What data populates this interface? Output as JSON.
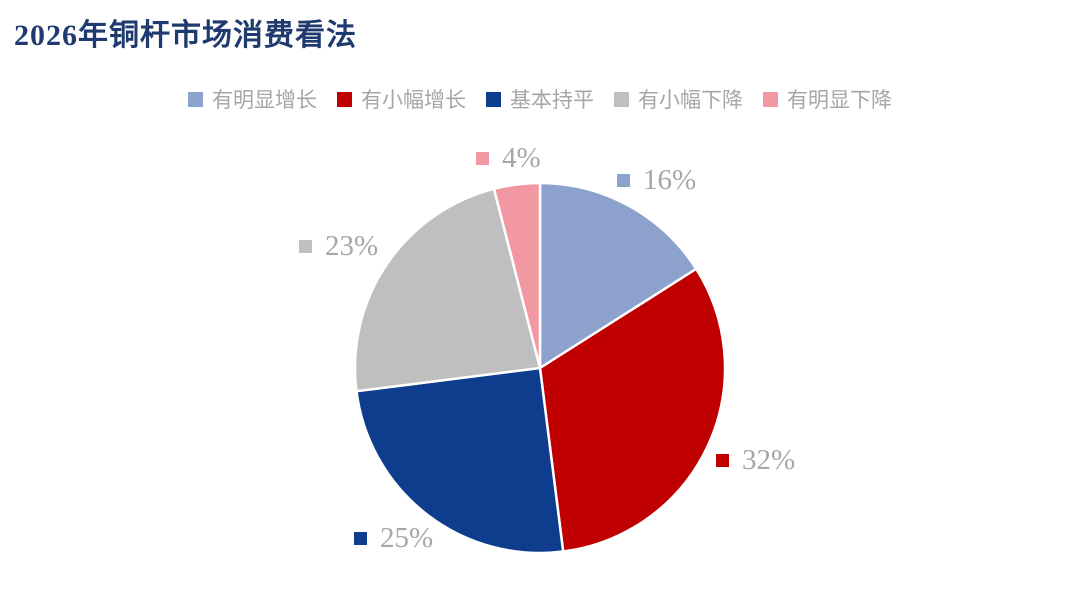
{
  "title": "2026年铜杆市场消费看法",
  "colors": {
    "title_text": "#1E3A6E",
    "label_text": "#A6A6A6",
    "slice_divider": "#FFFFFF",
    "background": "#FFFFFF"
  },
  "chart_data": {
    "type": "pie",
    "title": "2026年铜杆市场消费看法",
    "legend_position": "top",
    "start_angle_deg": 0,
    "direction": "clockwise",
    "unit": "percent",
    "categories": [
      "有明显增长",
      "有小幅增长",
      "基本持平",
      "有小幅下降",
      "有明显下降"
    ],
    "values": [
      16,
      32,
      25,
      23,
      4
    ],
    "slices": [
      {
        "label": "有明显增长",
        "value": 16,
        "data_label": "16%",
        "color": "#8CA2CC"
      },
      {
        "label": "有小幅增长",
        "value": 32,
        "data_label": "32%",
        "color": "#C00000"
      },
      {
        "label": "基本持平",
        "value": 25,
        "data_label": "25%",
        "color": "#0D3D8C"
      },
      {
        "label": "有小幅下降",
        "value": 23,
        "data_label": "23%",
        "color": "#BFBFBF"
      },
      {
        "label": "有明显下降",
        "value": 4,
        "data_label": "4%",
        "color": "#F298A2"
      }
    ]
  }
}
